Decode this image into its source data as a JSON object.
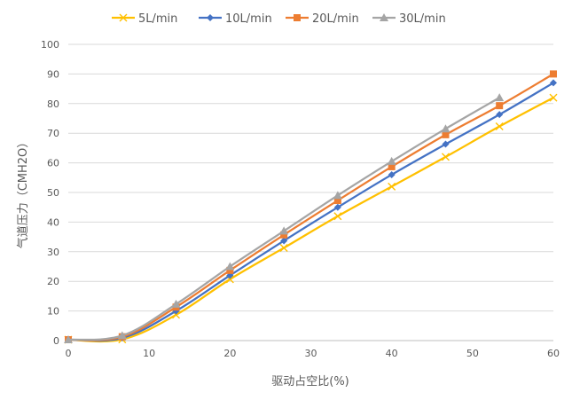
{
  "chart_data": {
    "type": "line",
    "xlabel": "驱动占空比(%)",
    "ylabel": "气道压力（CMH2O）",
    "xlim": [
      0,
      60
    ],
    "ylim": [
      0,
      100
    ],
    "xticks": [
      0,
      10,
      20,
      30,
      40,
      50,
      60
    ],
    "yticks": [
      0,
      10,
      20,
      30,
      40,
      50,
      60,
      70,
      80,
      90,
      100
    ],
    "grid": "horizontal",
    "legend_position": "top",
    "series": [
      {
        "name": "5L/min",
        "color": "#FFC000",
        "marker": "x",
        "x": [
          0,
          6.67,
          13.33,
          20,
          26.67,
          33.33,
          40,
          46.67,
          53.33,
          60
        ],
        "y": [
          0.3,
          0.4,
          8.7,
          20.7,
          31.3,
          42,
          52,
          62,
          72.3,
          82
        ]
      },
      {
        "name": "10L/min",
        "color": "#4472C4",
        "marker": "diamond",
        "x": [
          0,
          6.67,
          13.33,
          20,
          26.67,
          33.33,
          40,
          46.67,
          53.33,
          60
        ],
        "y": [
          0.3,
          0.9,
          10,
          22,
          33.7,
          45,
          56,
          66.3,
          76.3,
          87
        ]
      },
      {
        "name": "20L/min",
        "color": "#ED7D31",
        "marker": "square",
        "x": [
          0,
          6.67,
          13.33,
          20,
          26.67,
          33.33,
          40,
          46.67,
          53.33,
          60
        ],
        "y": [
          0.3,
          1.3,
          11.3,
          23.7,
          35.7,
          47.3,
          58.7,
          69.5,
          79.3,
          90
        ]
      },
      {
        "name": "30L/min",
        "color": "#A5A5A5",
        "marker": "triangle",
        "x": [
          0,
          6.67,
          13.33,
          20,
          26.67,
          33.33,
          40,
          46.67,
          53.33
        ],
        "y": [
          0.3,
          1.7,
          12.3,
          25,
          37,
          49,
          60.5,
          71.5,
          82
        ]
      }
    ]
  }
}
